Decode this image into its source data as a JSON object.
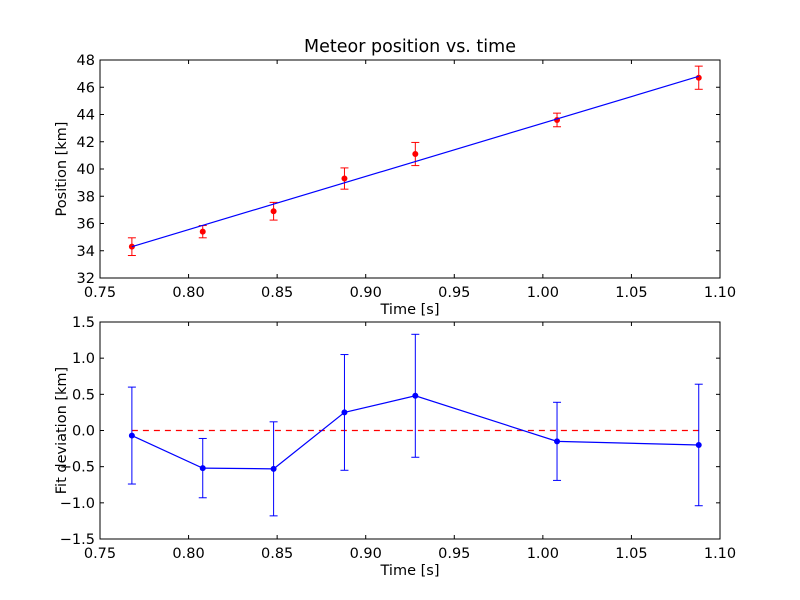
{
  "chart_data": [
    {
      "type": "scatter",
      "title": "Meteor position vs. time",
      "xlabel": "Time [s]",
      "ylabel": "Position [km]",
      "xlim": [
        0.75,
        1.1
      ],
      "ylim": [
        32,
        48
      ],
      "xticks": [
        "0.75",
        "0.80",
        "0.85",
        "0.90",
        "0.95",
        "1.00",
        "1.05",
        "1.10"
      ],
      "yticks": [
        "32",
        "34",
        "36",
        "38",
        "40",
        "42",
        "44",
        "46",
        "48"
      ],
      "grid": false,
      "series": [
        {
          "kind": "errorbar-points",
          "color": "#ff0000",
          "x": [
            0.768,
            0.808,
            0.848,
            0.888,
            0.928,
            1.008,
            1.088
          ],
          "y": [
            34.3,
            35.4,
            36.9,
            39.3,
            41.1,
            43.6,
            46.7
          ],
          "yerr": [
            0.65,
            0.45,
            0.65,
            0.78,
            0.85,
            0.5,
            0.85
          ]
        },
        {
          "kind": "fit-line",
          "color": "#0000ff",
          "x": [
            0.768,
            1.088
          ],
          "y": [
            34.3,
            46.8
          ]
        }
      ]
    },
    {
      "type": "line",
      "title": "",
      "xlabel": "Time [s]",
      "ylabel": "Fit deviation [km]",
      "xlim": [
        0.75,
        1.1
      ],
      "ylim": [
        -1.5,
        1.5
      ],
      "xticks": [
        "0.75",
        "0.80",
        "0.85",
        "0.90",
        "0.95",
        "1.00",
        "1.05",
        "1.10"
      ],
      "yticks": [
        "−1.5",
        "−1.0",
        "−0.5",
        "0.0",
        "0.5",
        "1.0",
        "1.5"
      ],
      "grid": false,
      "reference_line": {
        "y": 0,
        "style": "dashed",
        "color": "#ff0000"
      },
      "series": [
        {
          "kind": "errorbar-line",
          "color": "#0000ff",
          "x": [
            0.768,
            0.808,
            0.848,
            0.888,
            0.928,
            1.008,
            1.088
          ],
          "y": [
            -0.07,
            -0.52,
            -0.53,
            0.25,
            0.48,
            -0.15,
            -0.2
          ],
          "yerr": [
            0.67,
            0.41,
            0.65,
            0.8,
            0.85,
            0.54,
            0.84
          ]
        }
      ]
    }
  ]
}
